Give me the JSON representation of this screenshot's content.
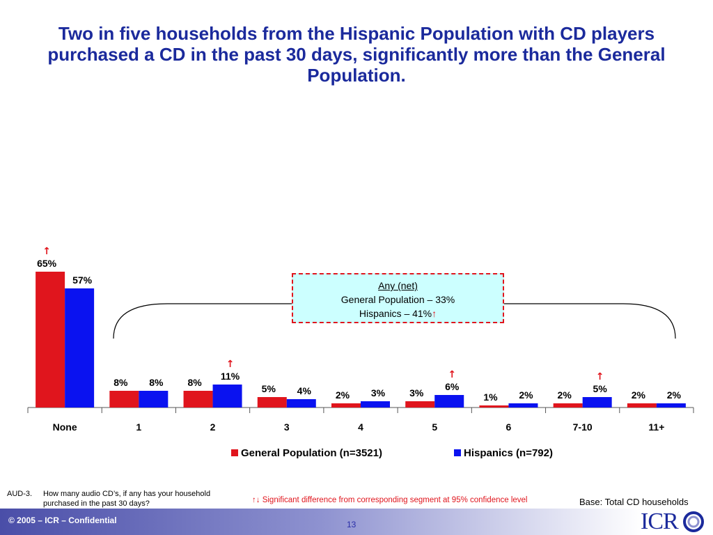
{
  "title": "Two in five households from the Hispanic Population with CD players purchased a CD in the past 30 days, significantly more than the General Population.",
  "colors": {
    "general": "#e0151d",
    "hispanic": "#0a12f0",
    "title": "#1b2a9c"
  },
  "chart_data": {
    "type": "bar",
    "categories": [
      "None",
      "1",
      "2",
      "3",
      "4",
      "5",
      "6",
      "7-10",
      "11+"
    ],
    "series": [
      {
        "name": "General Population (n=3521)",
        "values": [
          65,
          8,
          8,
          5,
          2,
          3,
          1,
          2,
          2
        ],
        "labels": [
          "65%",
          "8%",
          "8%",
          "5%",
          "2%",
          "3%",
          "1%",
          "2%",
          "2%"
        ]
      },
      {
        "name": "Hispanics (n=792)",
        "values": [
          57,
          8,
          11,
          4,
          3,
          6,
          2,
          5,
          2
        ],
        "labels": [
          "57%",
          "8%",
          "11%",
          "4%",
          "3%",
          "6%",
          "2%",
          "5%",
          "2%"
        ]
      }
    ],
    "significance_markers": [
      {
        "category": "None",
        "series": "General Population (n=3521)"
      },
      {
        "category": "2",
        "series": "Hispanics (n=792)"
      },
      {
        "category": "5",
        "series": "Hispanics (n=792)"
      },
      {
        "category": "7-10",
        "series": "Hispanics (n=792)"
      }
    ],
    "arrow_symbol": "↑",
    "ylim": [
      0,
      100
    ],
    "grid": false,
    "legend_position": "bottom"
  },
  "any_net": {
    "header": "Any (net)",
    "general": "General Population – 33%",
    "hispanics": "Hispanics – 41%",
    "arrow": "↑"
  },
  "legend": {
    "general": "General Population (n=3521)",
    "hispanic": "Hispanics (n=792)"
  },
  "question": {
    "number": "AUD-3.",
    "line1": "How many audio CD’s, if any has your household",
    "line2": "purchased in the past 30 days?"
  },
  "significance_note": "↑↓ Significant difference from corresponding segment at 95% confidence level",
  "base_note": "Base: Total CD households",
  "footer": {
    "copyright": "© 2005 – ICR – Confidential",
    "page": "13",
    "logo": "ICR"
  }
}
